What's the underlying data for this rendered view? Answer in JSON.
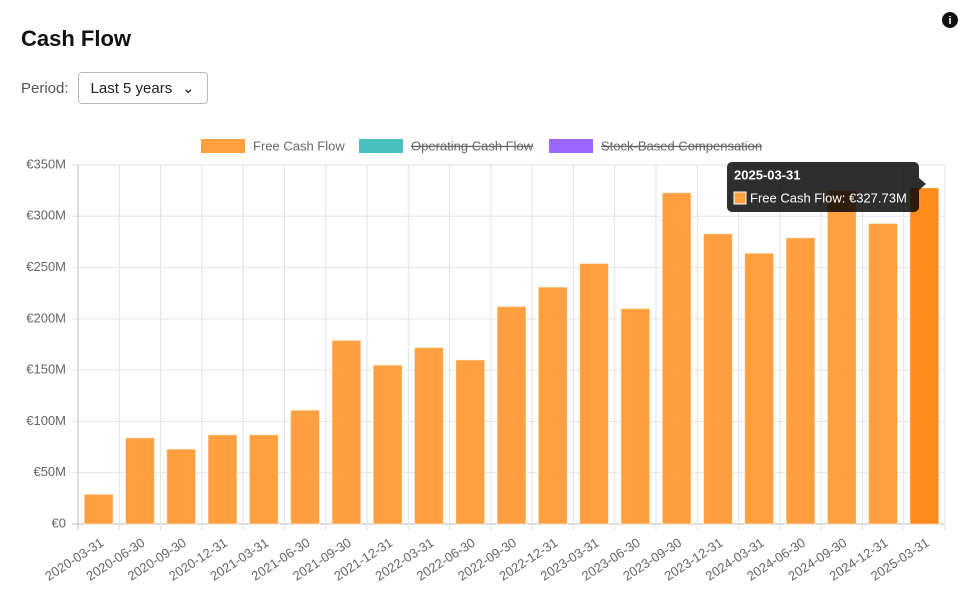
{
  "header": {
    "title": "Cash Flow"
  },
  "controls": {
    "period_label": "Period:",
    "period_value": "Last 5 years"
  },
  "chart_data": {
    "type": "bar",
    "categories": [
      "2020-03-31",
      "2020-06-30",
      "2020-09-30",
      "2020-12-31",
      "2021-03-31",
      "2021-06-30",
      "2021-09-30",
      "2021-12-31",
      "2022-03-31",
      "2022-06-30",
      "2022-09-30",
      "2022-12-31",
      "2023-03-31",
      "2023-06-30",
      "2023-09-30",
      "2023-12-31",
      "2024-03-31",
      "2024-06-30",
      "2024-09-30",
      "2024-12-31",
      "2025-03-31"
    ],
    "series": [
      {
        "name": "Free Cash Flow",
        "color": "#ffa040",
        "values": [
          29,
          84,
          73,
          87,
          87,
          111,
          179,
          155,
          172,
          160,
          212,
          231,
          254,
          210,
          323,
          283,
          264,
          279,
          325,
          293,
          327.73
        ]
      }
    ],
    "hidden_series": [
      {
        "name": "Operating Cash Flow",
        "color": "#4bc0c0"
      },
      {
        "name": "Stock-Based Compensation",
        "color": "#9966ff"
      }
    ],
    "ylim": [
      0,
      350
    ],
    "yticks": [
      {
        "value": 0,
        "label": "€0"
      },
      {
        "value": 50,
        "label": "€50M"
      },
      {
        "value": 100,
        "label": "€100M"
      },
      {
        "value": 150,
        "label": "€150M"
      },
      {
        "value": 200,
        "label": "€200M"
      },
      {
        "value": 250,
        "label": "€250M"
      },
      {
        "value": 300,
        "label": "€300M"
      },
      {
        "value": 350,
        "label": "€350M"
      }
    ],
    "grid": true,
    "tooltip": {
      "title": "2025-03-31",
      "label": "Free Cash Flow: €327.73M"
    }
  }
}
